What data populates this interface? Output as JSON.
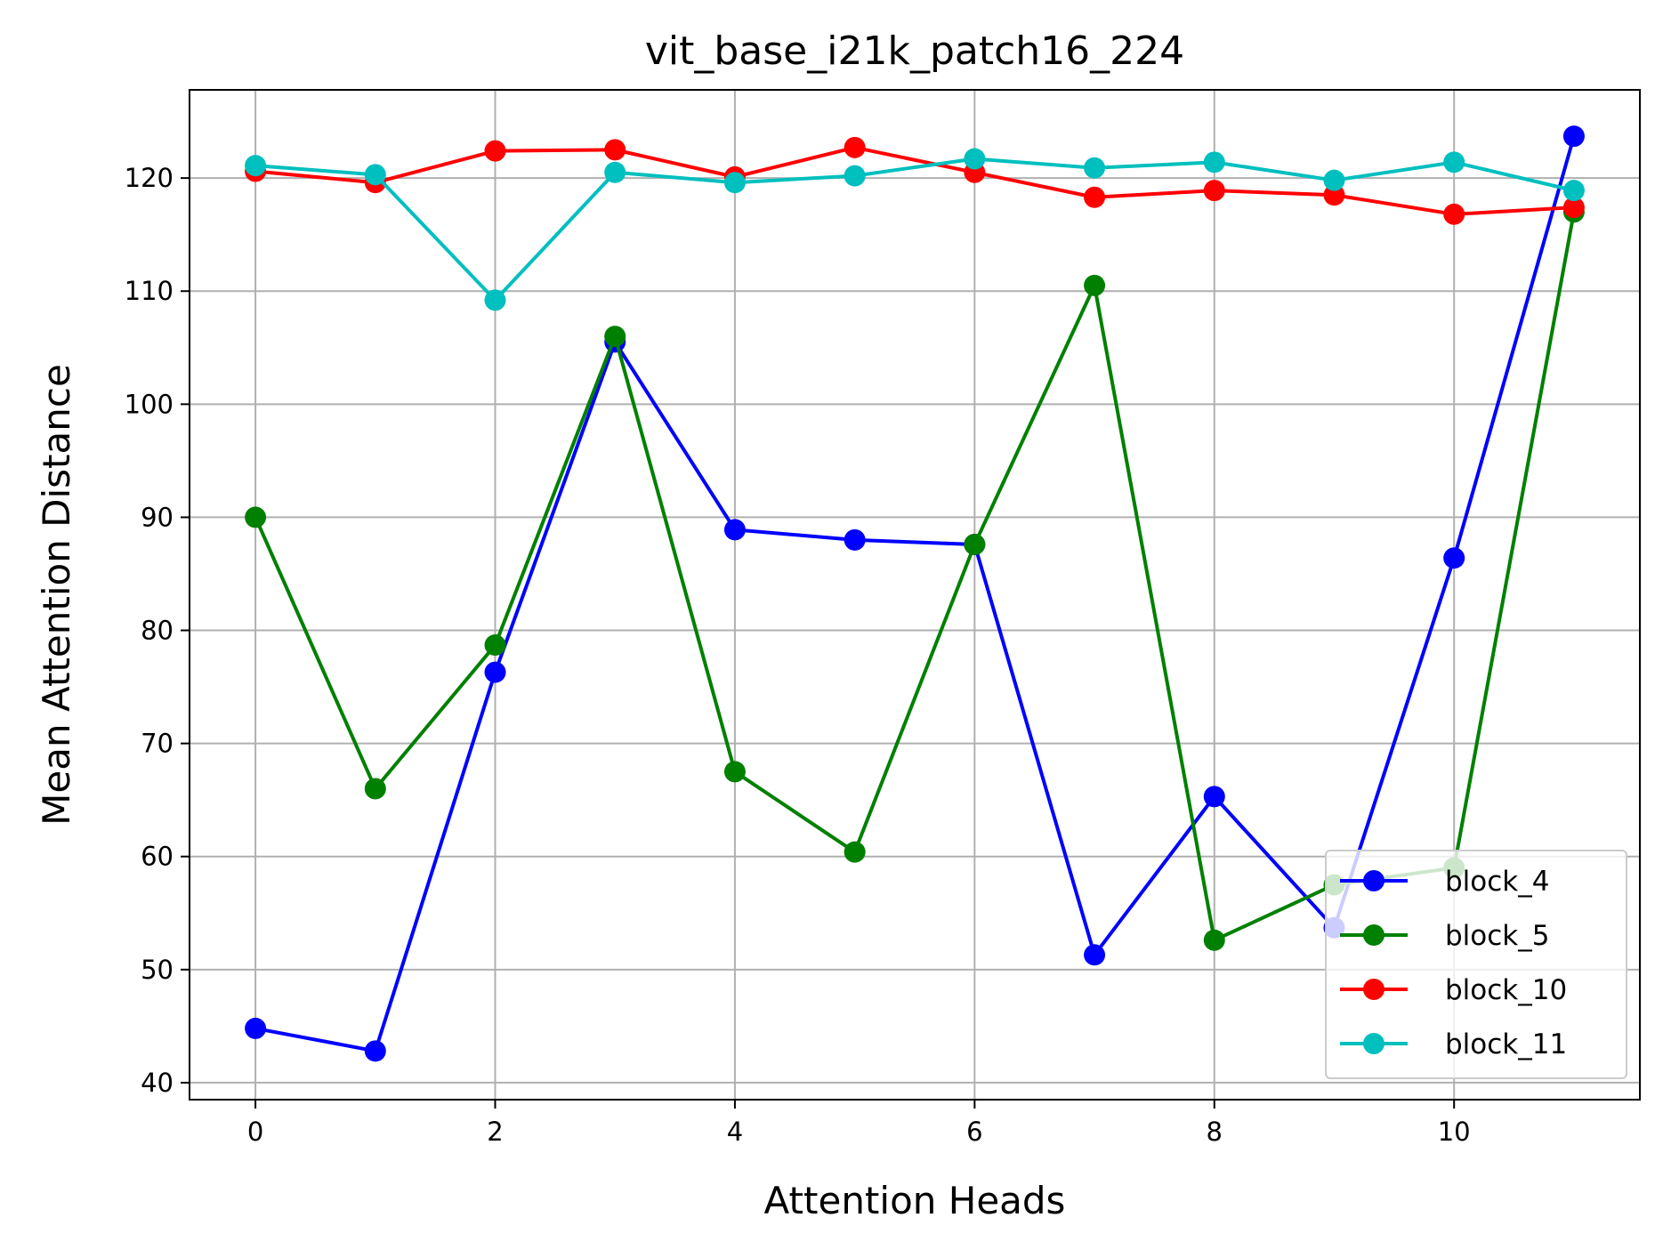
{
  "chart_data": {
    "type": "line",
    "title": "vit_base_i21k_patch16_224",
    "xlabel": "Attention Heads",
    "ylabel": "Mean Attention Distance",
    "x": [
      0,
      1,
      2,
      3,
      4,
      5,
      6,
      7,
      8,
      9,
      10,
      11
    ],
    "xlim": [
      -0.55,
      11.55
    ],
    "ylim": [
      38.5,
      127.8
    ],
    "xticks": [
      0,
      2,
      4,
      6,
      8,
      10
    ],
    "yticks": [
      40,
      50,
      60,
      70,
      80,
      90,
      100,
      110,
      120
    ],
    "grid": true,
    "legend_position": "lower right",
    "markers": "circle",
    "series": [
      {
        "name": "block_4",
        "color": "#0000ff",
        "values": [
          44.8,
          42.8,
          76.3,
          105.5,
          88.9,
          88.0,
          87.6,
          51.3,
          65.3,
          53.7,
          86.4,
          123.7
        ]
      },
      {
        "name": "block_5",
        "color": "#008000",
        "values": [
          90.0,
          66.0,
          78.7,
          106.0,
          67.5,
          60.4,
          87.6,
          110.5,
          52.6,
          57.5,
          59.0,
          117.0
        ]
      },
      {
        "name": "block_10",
        "color": "#ff0000",
        "values": [
          120.6,
          119.6,
          122.4,
          122.5,
          120.1,
          122.7,
          120.5,
          118.3,
          118.9,
          118.5,
          116.8,
          117.4
        ]
      },
      {
        "name": "block_11",
        "color": "#00bfbf",
        "values": [
          121.1,
          120.3,
          109.2,
          120.5,
          119.6,
          120.2,
          121.7,
          120.9,
          121.4,
          119.8,
          121.4,
          118.9
        ]
      }
    ]
  }
}
